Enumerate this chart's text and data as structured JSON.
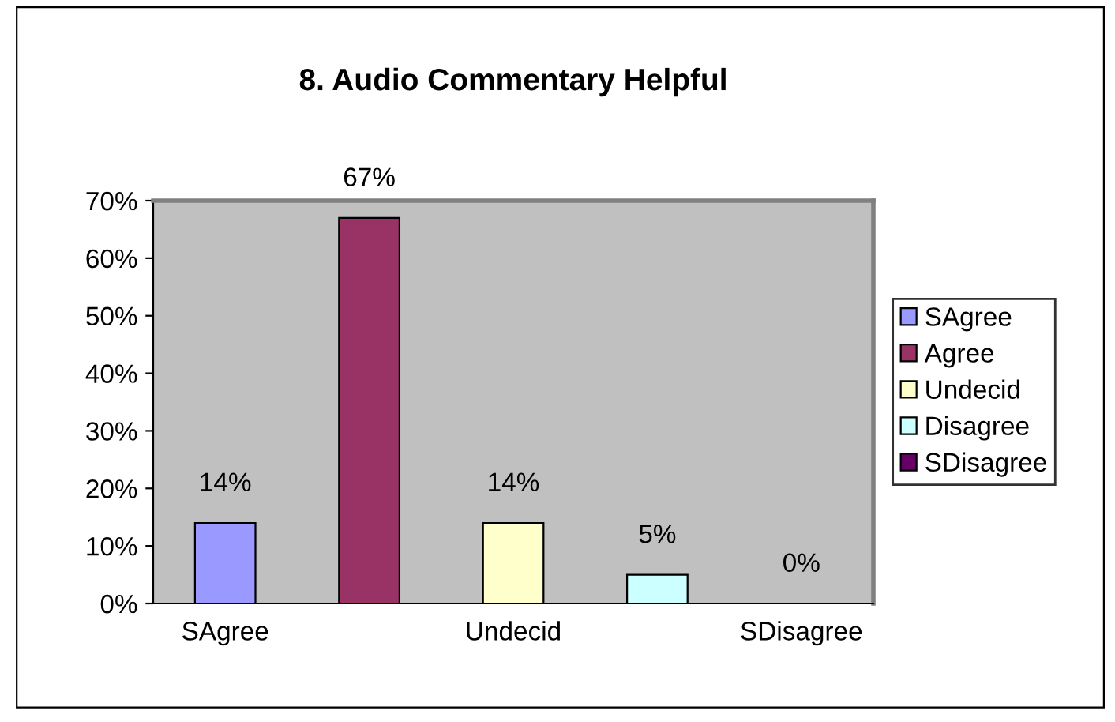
{
  "chart_data": {
    "type": "bar",
    "title": "8. Audio Commentary Helpful",
    "categories": [
      "SAgree",
      null,
      "Undecid",
      null,
      "SDisagree"
    ],
    "series": [
      {
        "name": "SAgree",
        "color": "#9999ff",
        "values": [
          14,
          null,
          null,
          null,
          null
        ],
        "value_labels": [
          "14%",
          null,
          null,
          null,
          null
        ]
      },
      {
        "name": "Agree",
        "color": "#993366",
        "values": [
          null,
          67,
          null,
          null,
          null
        ],
        "value_labels": [
          null,
          "67%",
          null,
          null,
          null
        ]
      },
      {
        "name": "Undecid",
        "color": "#ffffcc",
        "values": [
          null,
          null,
          14,
          null,
          null
        ],
        "value_labels": [
          null,
          null,
          "14%",
          null,
          null
        ]
      },
      {
        "name": "Disagree",
        "color": "#ccffff",
        "values": [
          null,
          null,
          null,
          5,
          null
        ],
        "value_labels": [
          null,
          null,
          null,
          "5%",
          null
        ]
      },
      {
        "name": "SDisagree",
        "color": "#660066",
        "values": [
          null,
          null,
          null,
          null,
          0
        ],
        "value_labels": [
          null,
          null,
          null,
          null,
          "0%"
        ]
      }
    ],
    "ylim": [
      0,
      70
    ],
    "yticks": [
      {
        "value": 0,
        "label": "0%"
      },
      {
        "value": 10,
        "label": "10%"
      },
      {
        "value": 20,
        "label": "20%"
      },
      {
        "value": 30,
        "label": "30%"
      },
      {
        "value": 40,
        "label": "40%"
      },
      {
        "value": 50,
        "label": "50%"
      },
      {
        "value": 60,
        "label": "60%"
      },
      {
        "value": 70,
        "label": "70%"
      }
    ],
    "grid": false,
    "legend": "right"
  }
}
